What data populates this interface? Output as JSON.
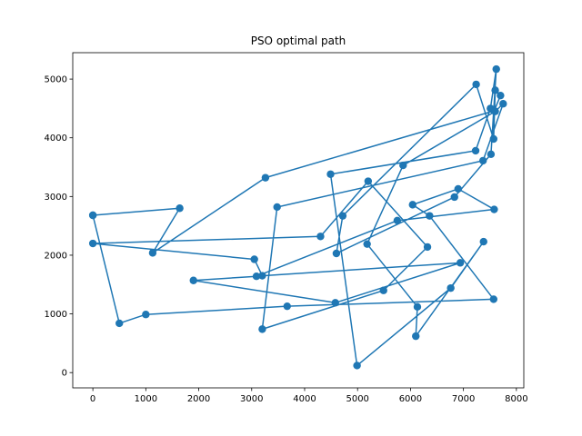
{
  "chart_data": {
    "type": "line",
    "title": "PSO optimal path",
    "xlabel": "",
    "ylabel": "",
    "xlim": [
      -380,
      8140
    ],
    "ylim": [
      -260,
      5450
    ],
    "xticks": [
      0,
      1000,
      2000,
      3000,
      4000,
      5000,
      6000,
      7000,
      8000
    ],
    "yticks": [
      0,
      1000,
      2000,
      3000,
      4000,
      5000
    ],
    "grid": false,
    "color": "#1f77b4",
    "series": [
      {
        "x": [
          0,
          1640,
          1130,
          3260,
          7580,
          7700,
          7600,
          7570,
          7240,
          4720,
          4600,
          6830,
          7520,
          7620,
          7510,
          7230,
          4490,
          4990,
          6760,
          7380,
          6100,
          6130,
          5180,
          5860,
          7600,
          7750,
          7370,
          3480,
          3200,
          5490,
          6320,
          5200,
          4300,
          0,
          3050,
          3200,
          6940,
          4580,
          1900,
          3090,
          5750,
          7580,
          6900,
          6040,
          6360,
          7570,
          3670,
          1000,
          500,
          0
        ],
        "y": [
          2680,
          2800,
          2040,
          3320,
          4460,
          4720,
          4810,
          3980,
          4910,
          2670,
          2030,
          2990,
          3720,
          5170,
          4500,
          3780,
          3380,
          120,
          1440,
          2230,
          620,
          1120,
          2190,
          3530,
          4450,
          4580,
          3610,
          2820,
          740,
          1400,
          2140,
          3260,
          2320,
          2200,
          1930,
          1650,
          1870,
          1190,
          1570,
          1640,
          2590,
          2780,
          3130,
          2860,
          2670,
          1250,
          1130,
          990,
          840,
          2680
        ]
      }
    ]
  }
}
